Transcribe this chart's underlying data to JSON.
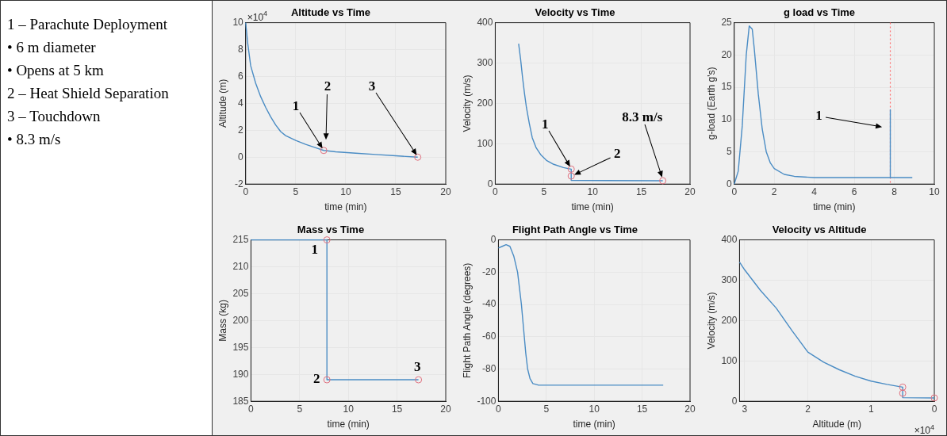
{
  "chart_data": [
    {
      "type": "other",
      "annotations": [
        "1 – Parachute Deployment",
        "• 6 m diameter",
        "• Opens at 5 km",
        "2 – Heat Shield Separation",
        "3 – Touchdown",
        "• 8.3 m/s"
      ]
    },
    {
      "type": "line",
      "title": "Altitude vs Time",
      "xlabel": "time (min)",
      "ylabel": "Altitude (m)",
      "xlim": [
        0,
        20
      ],
      "xticks": [
        0,
        5,
        10,
        15,
        20
      ],
      "ylim": [
        -2,
        10
      ],
      "yticks": [
        -2,
        0,
        2,
        4,
        6,
        8,
        10
      ],
      "grid": true,
      "series": [
        {
          "type": "line",
          "color": "#4a8cc4",
          "x": [
            0,
            0.2,
            0.5,
            1,
            1.5,
            2,
            2.5,
            3,
            3.5,
            4,
            5,
            6,
            7,
            7.8,
            9,
            11,
            13,
            15,
            17.2
          ],
          "values": [
            10,
            8.5,
            6.8,
            5.5,
            4.5,
            3.7,
            3,
            2.4,
            1.9,
            1.6,
            1.25,
            0.95,
            0.7,
            0.5,
            0.4,
            0.3,
            0.2,
            0.1,
            0
          ]
        },
        {
          "type": "scatter",
          "marker": "circle",
          "color": "#e0707f",
          "x": [
            7.8,
            17.2
          ],
          "values": [
            0.5,
            0
          ]
        }
      ],
      "annotations": [
        "×10$^{4}$",
        "1",
        "2",
        "3"
      ]
    },
    {
      "type": "line",
      "title": "Velocity vs Time",
      "xlabel": "time (min)",
      "ylabel": "Velocity (m/s)",
      "xlim": [
        0,
        20
      ],
      "xticks": [
        0,
        5,
        10,
        15,
        20
      ],
      "ylim": [
        0,
        400
      ],
      "yticks": [
        0,
        100,
        200,
        300,
        400
      ],
      "grid": true,
      "series": [
        {
          "type": "line",
          "color": "#4a8cc4",
          "x": [
            2.4,
            2.6,
            2.8,
            3,
            3.2,
            3.5,
            3.8,
            4.2,
            4.7,
            5.3,
            6,
            7,
            7.8,
            7.8,
            17.2
          ],
          "values": [
            348,
            310,
            265,
            225,
            190,
            150,
            115,
            90,
            72,
            58,
            49,
            41,
            37,
            9,
            8.3
          ]
        },
        {
          "type": "scatter",
          "marker": "circle",
          "color": "#e0707f",
          "x": [
            7.8,
            7.8,
            17.2
          ],
          "values": [
            37,
            20,
            8.3
          ]
        }
      ],
      "annotations": [
        "1",
        "2",
        "8.3 m/s"
      ]
    },
    {
      "type": "line",
      "title": "g load vs Time",
      "xlabel": "time (min)",
      "ylabel": "g-load (Earth g's)",
      "xlim": [
        0,
        10
      ],
      "xticks": [
        0,
        2,
        4,
        6,
        8,
        10
      ],
      "ylim": [
        0,
        25
      ],
      "yticks": [
        0,
        5,
        10,
        15,
        20,
        25
      ],
      "grid": true,
      "series": [
        {
          "type": "line",
          "color": "#4a8cc4",
          "x": [
            0,
            0.2,
            0.4,
            0.6,
            0.75,
            0.9,
            1,
            1.2,
            1.4,
            1.6,
            1.8,
            2,
            2.5,
            3,
            4,
            7.8,
            7.8,
            7.8,
            8.9
          ],
          "values": [
            0,
            2,
            9,
            20,
            24.5,
            24,
            21,
            14,
            8.5,
            5,
            3.3,
            2.4,
            1.5,
            1.2,
            1,
            1,
            11.5,
            1,
            1
          ]
        }
      ],
      "ref_lines": [
        {
          "axis": "x",
          "value": 7.8,
          "color": "#ff6a6a",
          "line_style": "dotted"
        }
      ],
      "annotations": [
        "1"
      ]
    },
    {
      "type": "line",
      "title": "Mass vs Time",
      "xlabel": "time (min)",
      "ylabel": "Mass (kg)",
      "xlim": [
        0,
        20
      ],
      "xticks": [
        0,
        5,
        10,
        15,
        20
      ],
      "ylim": [
        185,
        215
      ],
      "yticks": [
        185,
        190,
        195,
        200,
        205,
        210,
        215
      ],
      "grid": true,
      "series": [
        {
          "type": "line",
          "color": "#4a8cc4",
          "x": [
            0,
            7.8,
            7.8,
            17.2
          ],
          "values": [
            215,
            215,
            189,
            189
          ]
        },
        {
          "type": "scatter",
          "marker": "circle",
          "color": "#e0707f",
          "x": [
            7.8,
            7.8,
            17.2
          ],
          "values": [
            215,
            189,
            189
          ]
        }
      ],
      "annotations": [
        "1",
        "2",
        "3"
      ]
    },
    {
      "type": "line",
      "title": "Flight Path Angle vs Time",
      "xlabel": "time (min)",
      "ylabel": "Flight Path Angle (degrees)",
      "xlim": [
        0,
        20
      ],
      "xticks": [
        0,
        5,
        10,
        15,
        20
      ],
      "ylim": [
        -100,
        0
      ],
      "yticks": [
        -100,
        -80,
        -60,
        -40,
        -20,
        0
      ],
      "grid": true,
      "series": [
        {
          "type": "line",
          "color": "#4a8cc4",
          "x": [
            0,
            0.4,
            0.8,
            1.2,
            1.6,
            2,
            2.2,
            2.4,
            2.55,
            2.7,
            2.85,
            3.05,
            3.3,
            3.6,
            4.2,
            17.2
          ],
          "values": [
            -5,
            -4,
            -3,
            -4,
            -10,
            -20,
            -30,
            -40,
            -50,
            -60,
            -70,
            -80,
            -86,
            -89,
            -90,
            -90
          ]
        }
      ]
    },
    {
      "type": "line",
      "title": "Velocity vs Altitude",
      "xlabel": "Altitude (m)",
      "ylabel": "Velocity (m/s)",
      "xlim": [
        3.08,
        0
      ],
      "xticks": [
        3,
        2,
        1,
        0
      ],
      "ylim": [
        0,
        400
      ],
      "yticks": [
        0,
        100,
        200,
        300,
        400
      ],
      "grid": true,
      "series": [
        {
          "type": "line",
          "color": "#4a8cc4",
          "x": [
            3.08,
            3,
            2.75,
            2.5,
            2.25,
            2,
            1.75,
            1.5,
            1.25,
            1,
            0.75,
            0.5,
            0.5,
            0
          ],
          "values": [
            345,
            326,
            275,
            231,
            175,
            122,
            97,
            78,
            62,
            50,
            42,
            35,
            9,
            8.3
          ]
        },
        {
          "type": "scatter",
          "marker": "circle",
          "color": "#e0707f",
          "x": [
            0.5,
            0.5,
            0
          ],
          "values": [
            35,
            20,
            8.3
          ]
        }
      ],
      "annotations": [
        "×10$^{4}$"
      ]
    }
  ]
}
